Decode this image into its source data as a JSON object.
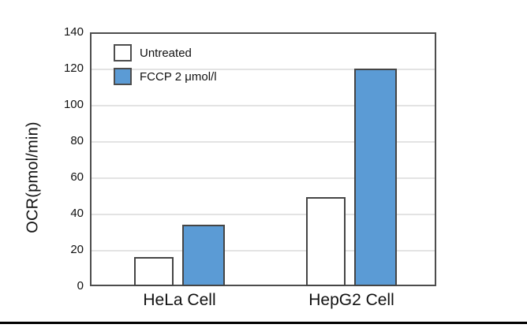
{
  "chart_data": {
    "type": "bar",
    "title": "",
    "xlabel": "",
    "ylabel": "OCR(pmol/min)",
    "categories": [
      "HeLa Cell",
      "HepG2 Cell"
    ],
    "series": [
      {
        "name": "Untreated",
        "color": "#ffffff",
        "values": [
          16,
          49
        ]
      },
      {
        "name": "FCCP 2 μmol/l",
        "color": "#5b9bd5",
        "values": [
          34,
          120
        ]
      }
    ],
    "ylim": [
      0,
      140
    ],
    "yticks": [
      0,
      20,
      40,
      60,
      80,
      100,
      120,
      140
    ],
    "grid": "horizontal",
    "gridline_color": "#e3e3e3",
    "bar_border_color": "#454545",
    "legend_position": "top-left-inside",
    "legend": [
      "Untreated",
      "FCCP 2 μmol/l"
    ]
  }
}
